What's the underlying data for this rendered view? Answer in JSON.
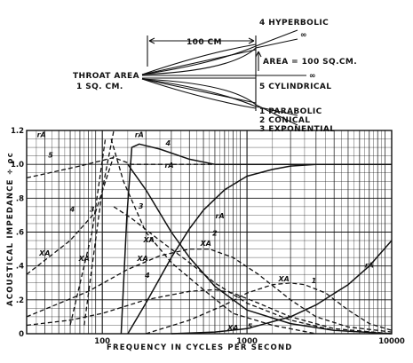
{
  "horn_diagram": {
    "length_label": "100 CM",
    "throat_label": [
      "THROAT AREA",
      "1 SQ. CM."
    ],
    "mouth_area_label": "AREA = 100 SQ.CM.",
    "infinity_top": "∞",
    "infinity_mid": "∞",
    "horn_labels_top": [
      "4 HYPERBOLIC"
    ],
    "horn_labels_mid": [
      "5 CYLINDRICAL"
    ],
    "horn_labels_bottom": [
      "1 PARABOLIC",
      "2 CONICAL",
      "3 EXPONENTIAL"
    ]
  },
  "chart_data": {
    "type": "line",
    "xlabel": "FREQUENCY IN CYCLES PER SECOND",
    "ylabel": "ACOUSTICAL IMPEDANCE ÷ ρc",
    "xscale": "log",
    "xlim": [
      30,
      10000
    ],
    "ylim": [
      0,
      1.2
    ],
    "xticks": [
      100,
      1000,
      10000
    ],
    "xtick_labels": [
      "100",
      "1000",
      "10000"
    ],
    "yticks": [
      0,
      0.2,
      0.4,
      0.6,
      0.8,
      1.0,
      1.2
    ],
    "ytick_labels": [
      "0",
      ".2",
      ".4",
      ".6",
      ".8",
      "1.0",
      "1.2"
    ],
    "grid": true,
    "series": [
      {
        "style": "solid",
        "points": [
          [
            135,
            0
          ],
          [
            148,
            0.7
          ],
          [
            160,
            1.1
          ],
          [
            180,
            1.12
          ],
          [
            250,
            1.09
          ],
          [
            400,
            1.03
          ],
          [
            600,
            1.0
          ],
          [
            10000,
            1.0
          ]
        ]
      },
      {
        "style": "dashed",
        "points": [
          [
            30,
            0.92
          ],
          [
            70,
            0.99
          ],
          [
            120,
            1.04
          ],
          [
            160,
            1.0
          ],
          [
            230,
            1.0
          ],
          [
            10000,
            1.0
          ]
        ]
      },
      {
        "style": "solid",
        "points": [
          [
            150,
            0
          ],
          [
            200,
            0.18
          ],
          [
            300,
            0.45
          ],
          [
            400,
            0.62
          ],
          [
            500,
            0.73
          ],
          [
            700,
            0.85
          ],
          [
            1000,
            0.93
          ],
          [
            1500,
            0.97
          ],
          [
            2000,
            0.99
          ],
          [
            3000,
            1.0
          ],
          [
            10000,
            1.0
          ]
        ]
      },
      {
        "style": "solid",
        "points": [
          [
            150,
            1.0
          ],
          [
            200,
            0.85
          ],
          [
            300,
            0.6
          ],
          [
            400,
            0.45
          ],
          [
            600,
            0.28
          ],
          [
            1000,
            0.14
          ],
          [
            2000,
            0.06
          ],
          [
            4000,
            0.02
          ],
          [
            10000,
            0
          ]
        ]
      },
      {
        "style": "dashed",
        "points": [
          [
            75,
            0.05
          ],
          [
            100,
            0.85
          ],
          [
            120,
            1.2
          ]
        ]
      },
      {
        "style": "dashed",
        "points": [
          [
            60,
            0.05
          ],
          [
            85,
            0.6
          ],
          [
            105,
            1.15
          ]
        ]
      },
      {
        "style": "dashed",
        "points": [
          [
            30,
            0.35
          ],
          [
            60,
            0.55
          ],
          [
            90,
            0.72
          ],
          [
            120,
            1.05
          ]
        ]
      },
      {
        "style": "dashed",
        "points": [
          [
            115,
            1.15
          ],
          [
            140,
            0.9
          ],
          [
            200,
            0.6
          ],
          [
            300,
            0.42
          ],
          [
            500,
            0.26
          ],
          [
            800,
            0.12
          ],
          [
            1500,
            0.05
          ],
          [
            3000,
            0
          ]
        ]
      },
      {
        "style": "dashed",
        "points": [
          [
            120,
            0.75
          ],
          [
            160,
            0.68
          ],
          [
            250,
            0.55
          ],
          [
            400,
            0.42
          ],
          [
            600,
            0.3
          ],
          [
            1000,
            0.18
          ],
          [
            2000,
            0.08
          ],
          [
            4000,
            0.02
          ]
        ]
      },
      {
        "style": "dashed",
        "points": [
          [
            30,
            0.1
          ],
          [
            80,
            0.25
          ],
          [
            150,
            0.38
          ],
          [
            250,
            0.46
          ],
          [
            400,
            0.5
          ],
          [
            550,
            0.5
          ],
          [
            800,
            0.45
          ],
          [
            1200,
            0.35
          ],
          [
            2000,
            0.2
          ],
          [
            3000,
            0.1
          ],
          [
            5000,
            0.04
          ],
          [
            10000,
            0.01
          ]
        ]
      },
      {
        "style": "solid",
        "points": [
          [
            300,
            0
          ],
          [
            600,
            0.01
          ],
          [
            1000,
            0.03
          ],
          [
            2000,
            0.1
          ],
          [
            3000,
            0.17
          ],
          [
            5000,
            0.29
          ],
          [
            7000,
            0.4
          ],
          [
            10000,
            0.55
          ]
        ]
      },
      {
        "style": "dashed",
        "points": [
          [
            200,
            0
          ],
          [
            400,
            0.08
          ],
          [
            700,
            0.17
          ],
          [
            1000,
            0.24
          ],
          [
            1500,
            0.29
          ],
          [
            2000,
            0.3
          ],
          [
            2500,
            0.29
          ],
          [
            3500,
            0.24
          ],
          [
            5000,
            0.14
          ],
          [
            7000,
            0.06
          ],
          [
            10000,
            0.02
          ]
        ]
      },
      {
        "style": "dashed",
        "points": [
          [
            30,
            0.05
          ],
          [
            60,
            0.08
          ],
          [
            100,
            0.12
          ],
          [
            200,
            0.2
          ],
          [
            400,
            0.25
          ],
          [
            600,
            0.26
          ],
          [
            800,
            0.24
          ],
          [
            1200,
            0.18
          ],
          [
            2000,
            0.1
          ],
          [
            4000,
            0.03
          ],
          [
            10000,
            0
          ]
        ]
      }
    ],
    "annotations": [
      {
        "text": "rA",
        "x": 38,
        "y": 1.16
      },
      {
        "text": "5",
        "x": 44,
        "y": 1.04
      },
      {
        "text": "rA",
        "x": 180,
        "y": 1.16
      },
      {
        "text": "4",
        "x": 285,
        "y": 1.11
      },
      {
        "text": "rA",
        "x": 290,
        "y": 0.98
      },
      {
        "text": "rA",
        "x": 650,
        "y": 0.68
      },
      {
        "text": "2",
        "x": 600,
        "y": 0.58
      },
      {
        "text": "3",
        "x": 185,
        "y": 0.74
      },
      {
        "text": "4",
        "x": 62,
        "y": 0.72
      },
      {
        "text": "3",
        "x": 85,
        "y": 0.72
      },
      {
        "text": "XA",
        "x": 210,
        "y": 0.54
      },
      {
        "text": "XA",
        "x": 190,
        "y": 0.43
      },
      {
        "text": "XA",
        "x": 520,
        "y": 0.52
      },
      {
        "text": "XA",
        "x": 40,
        "y": 0.46
      },
      {
        "text": "XA",
        "x": 75,
        "y": 0.43
      },
      {
        "text": "4",
        "x": 205,
        "y": 0.33
      },
      {
        "text": "XA",
        "x": 1800,
        "y": 0.31
      },
      {
        "text": "1",
        "x": 2900,
        "y": 0.3
      },
      {
        "text": "rA",
        "x": 7000,
        "y": 0.39
      },
      {
        "text": "XA",
        "x": 800,
        "y": 0.02
      },
      {
        "text": "5",
        "x": 1050,
        "y": 0.03
      }
    ]
  }
}
